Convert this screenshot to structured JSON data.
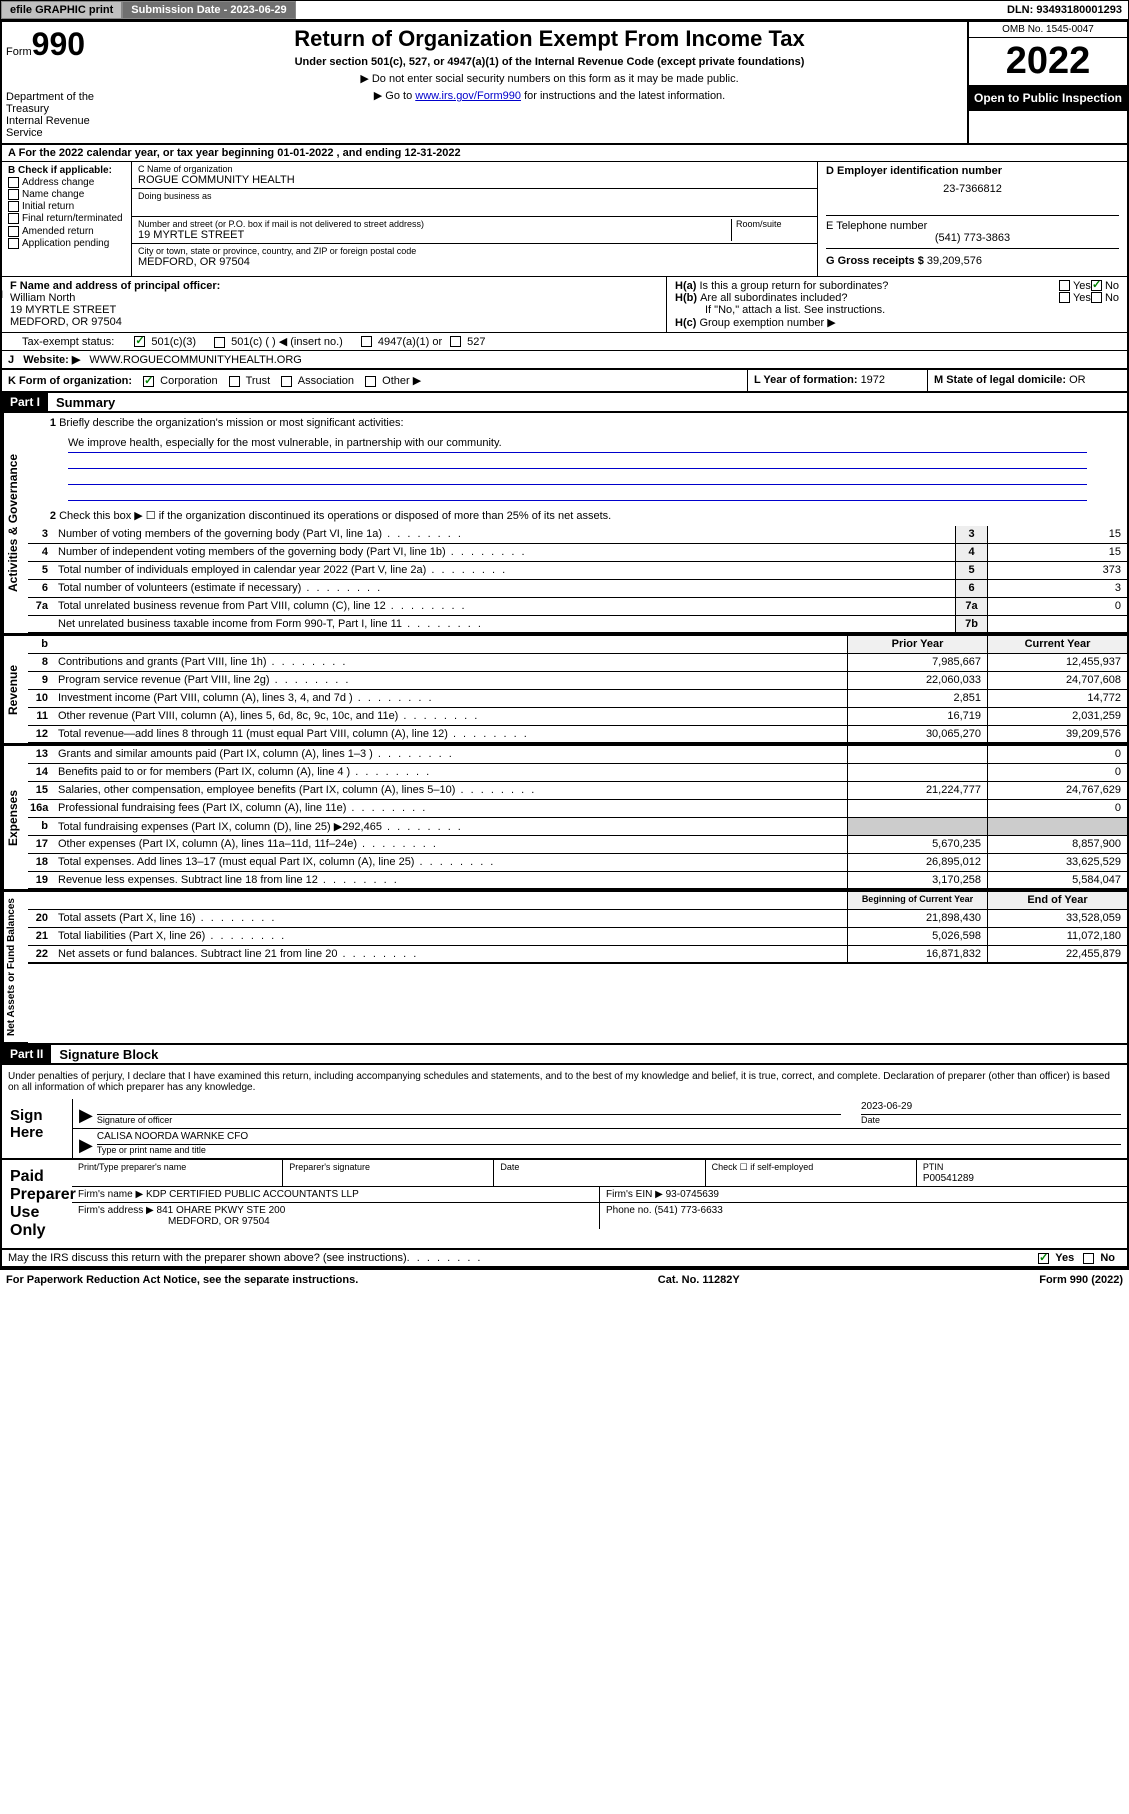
{
  "topbar": {
    "efile": "efile GRAPHIC print",
    "submission_label": "Submission Date - ",
    "submission_date": "2023-06-29",
    "dln_label": "DLN: ",
    "dln": "93493180001293"
  },
  "header": {
    "form_prefix": "Form",
    "form_num": "990",
    "dept": "Department of the Treasury",
    "irs": "Internal Revenue Service",
    "title": "Return of Organization Exempt From Income Tax",
    "subtitle": "Under section 501(c), 527, or 4947(a)(1) of the Internal Revenue Code (except private foundations)",
    "note1": "▶ Do not enter social security numbers on this form as it may be made public.",
    "note2_pre": "▶ Go to ",
    "note2_link": "www.irs.gov/Form990",
    "note2_post": " for instructions and the latest information.",
    "omb": "OMB No. 1545-0047",
    "year": "2022",
    "open_public": "Open to Public Inspection"
  },
  "A": {
    "text": "For the 2022 calendar year, or tax year beginning ",
    "begin": "01-01-2022",
    "mid": " , and ending ",
    "end": "12-31-2022"
  },
  "B": {
    "label": "B Check if applicable:",
    "items": [
      "Address change",
      "Name change",
      "Initial return",
      "Final return/terminated",
      "Amended return",
      "Application pending"
    ]
  },
  "C": {
    "name_lbl": "C Name of organization",
    "name": "ROGUE COMMUNITY HEALTH",
    "dba_lbl": "Doing business as",
    "street_lbl": "Number and street (or P.O. box if mail is not delivered to street address)",
    "room_lbl": "Room/suite",
    "street": "19 MYRTLE STREET",
    "city_lbl": "City or town, state or province, country, and ZIP or foreign postal code",
    "city": "MEDFORD, OR  97504"
  },
  "D": {
    "lbl": "D Employer identification number",
    "val": "23-7366812"
  },
  "E": {
    "lbl": "E Telephone number",
    "val": "(541) 773-3863"
  },
  "G": {
    "lbl": "G Gross receipts $ ",
    "val": "39,209,576"
  },
  "F": {
    "lbl": "F Name and address of principal officer:",
    "name": "William North",
    "street": "19 MYRTLE STREET",
    "city": "MEDFORD, OR  97504"
  },
  "H": {
    "a": "Is this a group return for subordinates?",
    "b": "Are all subordinates included?",
    "note": "If \"No,\" attach a list. See instructions.",
    "c": "Group exemption number ▶",
    "a_no": true
  },
  "I": {
    "lbl": "Tax-exempt status:",
    "opts": [
      "501(c)(3)",
      "501(c) (  ) ◀ (insert no.)",
      "4947(a)(1) or",
      "527"
    ]
  },
  "J": {
    "lbl": "Website: ▶",
    "val": "WWW.ROGUECOMMUNITYHEALTH.ORG"
  },
  "K": {
    "lbl": "K Form of organization:",
    "opts": [
      "Corporation",
      "Trust",
      "Association",
      "Other ▶"
    ]
  },
  "L": {
    "lbl": "L Year of formation: ",
    "val": "1972"
  },
  "M": {
    "lbl": "M State of legal domicile: ",
    "val": "OR"
  },
  "partI": {
    "hdr": "Part I",
    "title": "Summary"
  },
  "mission": {
    "lbl": "Briefly describe the organization's mission or most significant activities:",
    "text": "We improve health, especially for the most vulnerable, in partnership with our community."
  },
  "line2": "Check this box ▶ ☐  if the organization discontinued its operations or disposed of more than 25% of its net assets.",
  "lines_gov": [
    {
      "n": "3",
      "t": "Number of voting members of the governing body (Part VI, line 1a)",
      "box": "3",
      "v": "15"
    },
    {
      "n": "4",
      "t": "Number of independent voting members of the governing body (Part VI, line 1b)",
      "box": "4",
      "v": "15"
    },
    {
      "n": "5",
      "t": "Total number of individuals employed in calendar year 2022 (Part V, line 2a)",
      "box": "5",
      "v": "373"
    },
    {
      "n": "6",
      "t": "Total number of volunteers (estimate if necessary)",
      "box": "6",
      "v": "3"
    },
    {
      "n": "7a",
      "t": "Total unrelated business revenue from Part VIII, column (C), line 12",
      "box": "7a",
      "v": "0"
    },
    {
      "n": "",
      "t": "Net unrelated business taxable income from Form 990-T, Part I, line 11",
      "box": "7b",
      "v": ""
    }
  ],
  "col_hdrs": {
    "prior": "Prior Year",
    "current": "Current Year"
  },
  "lines_rev": [
    {
      "n": "8",
      "t": "Contributions and grants (Part VIII, line 1h)",
      "p": "7,985,667",
      "c": "12,455,937"
    },
    {
      "n": "9",
      "t": "Program service revenue (Part VIII, line 2g)",
      "p": "22,060,033",
      "c": "24,707,608"
    },
    {
      "n": "10",
      "t": "Investment income (Part VIII, column (A), lines 3, 4, and 7d )",
      "p": "2,851",
      "c": "14,772"
    },
    {
      "n": "11",
      "t": "Other revenue (Part VIII, column (A), lines 5, 6d, 8c, 9c, 10c, and 11e)",
      "p": "16,719",
      "c": "2,031,259"
    },
    {
      "n": "12",
      "t": "Total revenue—add lines 8 through 11 (must equal Part VIII, column (A), line 12)",
      "p": "30,065,270",
      "c": "39,209,576"
    }
  ],
  "lines_exp": [
    {
      "n": "13",
      "t": "Grants and similar amounts paid (Part IX, column (A), lines 1–3 )",
      "p": "",
      "c": "0"
    },
    {
      "n": "14",
      "t": "Benefits paid to or for members (Part IX, column (A), line 4 )",
      "p": "",
      "c": "0"
    },
    {
      "n": "15",
      "t": "Salaries, other compensation, employee benefits (Part IX, column (A), lines 5–10)",
      "p": "21,224,777",
      "c": "24,767,629"
    },
    {
      "n": "16a",
      "t": "Professional fundraising fees (Part IX, column (A), line 11e)",
      "p": "",
      "c": "0"
    },
    {
      "n": "b",
      "t": "Total fundraising expenses (Part IX, column (D), line 25) ▶292,465",
      "p": "shade",
      "c": "shade"
    },
    {
      "n": "17",
      "t": "Other expenses (Part IX, column (A), lines 11a–11d, 11f–24e)",
      "p": "5,670,235",
      "c": "8,857,900"
    },
    {
      "n": "18",
      "t": "Total expenses. Add lines 13–17 (must equal Part IX, column (A), line 25)",
      "p": "26,895,012",
      "c": "33,625,529"
    },
    {
      "n": "19",
      "t": "Revenue less expenses. Subtract line 18 from line 12",
      "p": "3,170,258",
      "c": "5,584,047"
    }
  ],
  "col_hdrs2": {
    "prior": "Beginning of Current Year",
    "current": "End of Year"
  },
  "lines_net": [
    {
      "n": "20",
      "t": "Total assets (Part X, line 16)",
      "p": "21,898,430",
      "c": "33,528,059"
    },
    {
      "n": "21",
      "t": "Total liabilities (Part X, line 26)",
      "p": "5,026,598",
      "c": "11,072,180"
    },
    {
      "n": "22",
      "t": "Net assets or fund balances. Subtract line 21 from line 20",
      "p": "16,871,832",
      "c": "22,455,879"
    }
  ],
  "tabs": {
    "gov": "Activities & Governance",
    "rev": "Revenue",
    "exp": "Expenses",
    "net": "Net Assets or Fund Balances"
  },
  "partII": {
    "hdr": "Part II",
    "title": "Signature Block"
  },
  "penalty": "Under penalties of perjury, I declare that I have examined this return, including accompanying schedules and statements, and to the best of my knowledge and belief, it is true, correct, and complete. Declaration of preparer (other than officer) is based on all information of which preparer has any knowledge.",
  "sign": {
    "here": "Sign Here",
    "sig_lbl": "Signature of officer",
    "date_lbl": "Date",
    "date": "2023-06-29",
    "name": "CALISA NOORDA WARNKE  CFO",
    "name_lbl": "Type or print name and title"
  },
  "paid": {
    "title": "Paid Preparer Use Only",
    "pname_lbl": "Print/Type preparer's name",
    "psig_lbl": "Preparer's signature",
    "pdate_lbl": "Date",
    "chk_lbl": "Check ☐ if self-employed",
    "ptin_lbl": "PTIN",
    "ptin": "P00541289",
    "firm_lbl": "Firm's name   ▶",
    "firm": "KDP CERTIFIED PUBLIC ACCOUNTANTS LLP",
    "ein_lbl": "Firm's EIN ▶",
    "ein": "93-0745639",
    "addr_lbl": "Firm's address ▶",
    "addr1": "841 OHARE PKWY STE 200",
    "addr2": "MEDFORD, OR  97504",
    "phone_lbl": "Phone no. ",
    "phone": "(541) 773-6633"
  },
  "discuss": "May the IRS discuss this return with the preparer shown above? (see instructions)",
  "footer": {
    "l": "For Paperwork Reduction Act Notice, see the separate instructions.",
    "m": "Cat. No. 11282Y",
    "r": "Form 990 (2022)"
  }
}
